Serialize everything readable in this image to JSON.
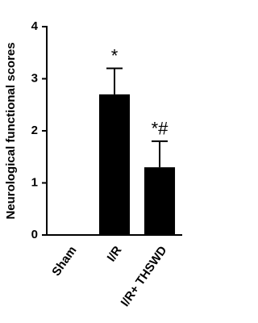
{
  "chart_data": {
    "type": "bar",
    "y_label": "Neurological functional scores",
    "categories": [
      "Sham",
      "I/R",
      "I/R+ THSWD"
    ],
    "values": [
      0,
      2.7,
      1.3
    ],
    "errors": [
      0,
      0.5,
      0.5
    ],
    "bar_labels": [
      null,
      "*",
      "*#"
    ],
    "color": "#000000",
    "ylim": [
      0,
      4
    ],
    "yticks": [
      0,
      1,
      2,
      3,
      4
    ],
    "grid": false
  }
}
